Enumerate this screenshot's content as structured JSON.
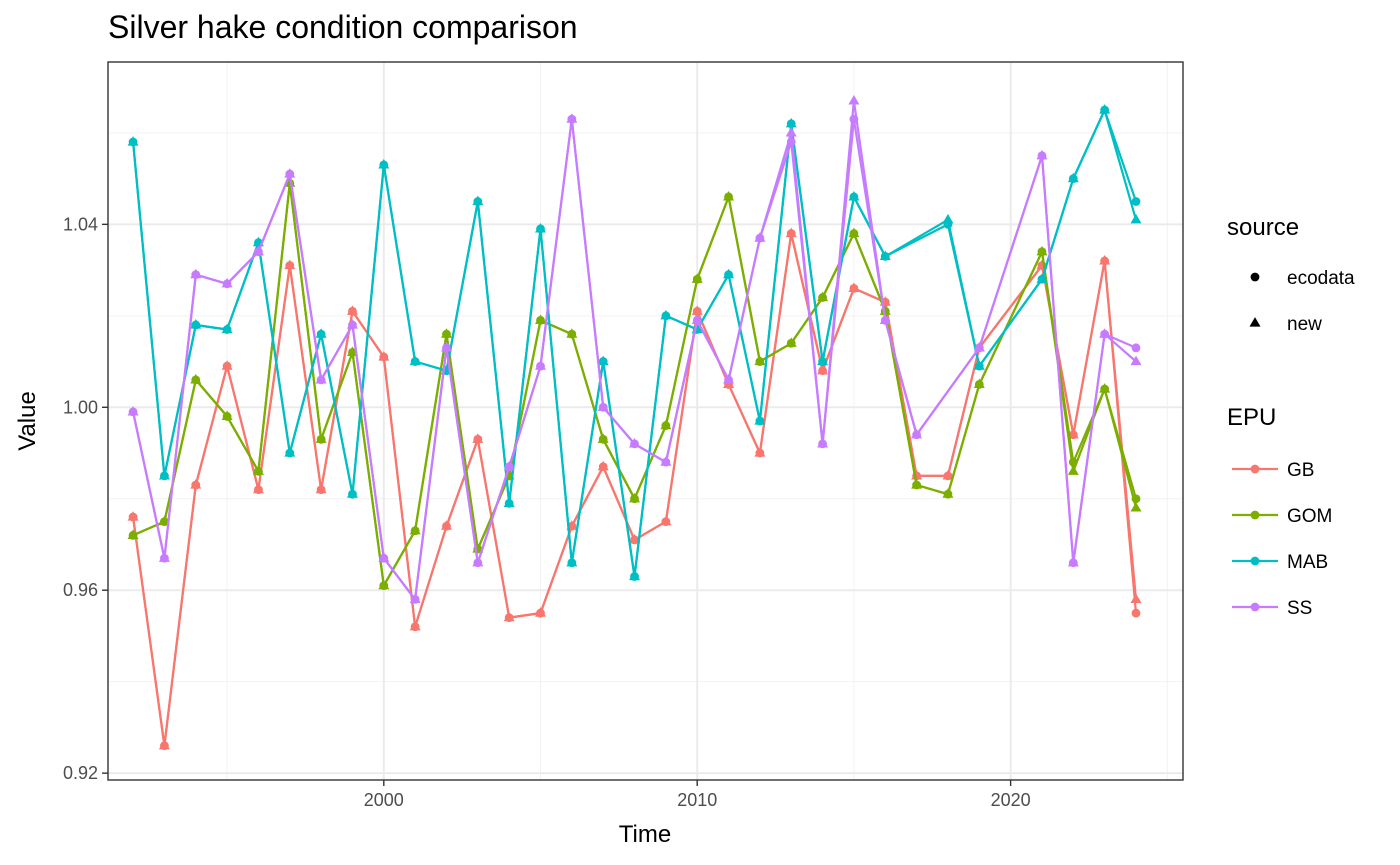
{
  "chart_data": {
    "type": "line",
    "title": "Silver hake condition comparison",
    "xlabel": "Time",
    "ylabel": "Value",
    "xlim": [
      1991.2,
      2025.5
    ],
    "ylim": [
      0.9185,
      1.0755
    ],
    "x_ticks": [
      2000,
      2010,
      2020
    ],
    "y_ticks": [
      0.92,
      0.96,
      1.0,
      1.04
    ],
    "y_tick_labels": [
      "0.92",
      "0.96",
      "1.00",
      "1.04"
    ],
    "grid": true,
    "legend_placement": "right",
    "legends": {
      "source": {
        "title": "source",
        "entries": [
          {
            "label": "ecodata",
            "shape": "circle"
          },
          {
            "label": "new",
            "shape": "triangle"
          }
        ]
      },
      "epu": {
        "title": "EPU",
        "entries": [
          "GB",
          "GOM",
          "MAB",
          "SS"
        ]
      }
    },
    "series": [
      {
        "name": "GB",
        "color": "#F8766D",
        "x": [
          1992,
          1993,
          1994,
          1995,
          1996,
          1997,
          1998,
          1999,
          2000,
          2001,
          2002,
          2003,
          2004,
          2005,
          2006,
          2007,
          2008,
          2009,
          2010,
          2011,
          2012,
          2013,
          2014,
          2015,
          2016,
          2017,
          2018,
          2019,
          2021,
          2022,
          2023,
          2024
        ],
        "ecodata": [
          0.976,
          0.926,
          0.983,
          1.009,
          0.982,
          1.031,
          0.982,
          1.021,
          1.011,
          0.952,
          0.974,
          0.993,
          0.954,
          0.955,
          0.974,
          0.987,
          0.971,
          0.975,
          1.021,
          1.005,
          0.99,
          1.038,
          1.008,
          1.026,
          1.023,
          0.985,
          0.985,
          1.013,
          1.031,
          0.994,
          1.032,
          0.955
        ],
        "new": [
          0.976,
          0.926,
          0.983,
          1.009,
          0.982,
          1.031,
          0.982,
          1.021,
          1.011,
          0.952,
          0.974,
          0.993,
          0.954,
          0.955,
          0.974,
          0.987,
          0.971,
          0.975,
          1.021,
          1.005,
          0.99,
          1.038,
          1.008,
          1.026,
          1.023,
          0.985,
          0.985,
          1.013,
          1.031,
          0.994,
          1.032,
          0.958
        ]
      },
      {
        "name": "GOM",
        "color": "#7CAE00",
        "x": [
          1992,
          1993,
          1994,
          1995,
          1996,
          1997,
          1998,
          1999,
          2000,
          2001,
          2002,
          2003,
          2004,
          2005,
          2006,
          2007,
          2008,
          2009,
          2010,
          2011,
          2012,
          2013,
          2014,
          2015,
          2016,
          2017,
          2018,
          2019,
          2021,
          2022,
          2023,
          2024
        ],
        "ecodata": [
          0.972,
          0.975,
          1.006,
          0.998,
          0.986,
          1.049,
          0.993,
          1.012,
          0.961,
          0.973,
          1.016,
          0.969,
          0.985,
          1.019,
          1.016,
          0.993,
          0.98,
          0.996,
          1.028,
          1.046,
          1.01,
          1.014,
          1.024,
          1.038,
          1.021,
          0.983,
          0.981,
          1.005,
          1.034,
          0.988,
          1.004,
          0.98
        ],
        "new": [
          0.972,
          0.975,
          1.006,
          0.998,
          0.986,
          1.049,
          0.993,
          1.012,
          0.961,
          0.973,
          1.016,
          0.969,
          0.985,
          1.019,
          1.016,
          0.993,
          0.98,
          0.996,
          1.028,
          1.046,
          1.01,
          1.014,
          1.024,
          1.038,
          1.021,
          0.983,
          0.981,
          1.005,
          1.034,
          0.986,
          1.004,
          0.978
        ]
      },
      {
        "name": "MAB",
        "color": "#00BFC4",
        "x": [
          1992,
          1993,
          1994,
          1995,
          1996,
          1997,
          1998,
          1999,
          2000,
          2001,
          2002,
          2003,
          2004,
          2005,
          2006,
          2007,
          2008,
          2009,
          2010,
          2011,
          2012,
          2013,
          2014,
          2015,
          2016,
          2018,
          2019,
          2021,
          2022,
          2023,
          2024
        ],
        "ecodata": [
          1.058,
          0.985,
          1.018,
          1.017,
          1.036,
          0.99,
          1.016,
          0.981,
          1.053,
          1.01,
          1.008,
          1.045,
          0.979,
          1.039,
          0.966,
          1.01,
          0.963,
          1.02,
          1.017,
          1.029,
          0.997,
          1.062,
          1.01,
          1.046,
          1.033,
          1.04,
          1.009,
          1.028,
          1.05,
          1.065,
          1.045
        ],
        "new": [
          1.058,
          0.985,
          1.018,
          1.017,
          1.036,
          0.99,
          1.016,
          0.981,
          1.053,
          1.01,
          1.008,
          1.045,
          0.979,
          1.039,
          0.966,
          1.01,
          0.963,
          1.02,
          1.017,
          1.029,
          0.997,
          1.062,
          1.01,
          1.046,
          1.033,
          1.041,
          1.009,
          1.028,
          1.05,
          1.065,
          1.041
        ]
      },
      {
        "name": "SS",
        "color": "#C77CFF",
        "x": [
          1992,
          1993,
          1994,
          1995,
          1996,
          1997,
          1998,
          1999,
          2000,
          2001,
          2002,
          2003,
          2004,
          2005,
          2006,
          2007,
          2008,
          2009,
          2010,
          2011,
          2012,
          2013,
          2014,
          2015,
          2016,
          2017,
          2019,
          2021,
          2022,
          2023,
          2024
        ],
        "ecodata": [
          0.999,
          0.967,
          1.029,
          1.027,
          1.034,
          1.051,
          1.006,
          1.018,
          0.967,
          0.958,
          1.013,
          0.966,
          0.987,
          1.009,
          1.063,
          1.0,
          0.992,
          0.988,
          1.019,
          1.006,
          1.037,
          1.058,
          0.992,
          1.063,
          1.019,
          0.994,
          1.013,
          1.055,
          0.966,
          1.016,
          1.013
        ],
        "new": [
          0.999,
          0.967,
          1.029,
          1.027,
          1.034,
          1.051,
          1.006,
          1.018,
          0.967,
          0.958,
          1.013,
          0.966,
          0.987,
          1.009,
          1.063,
          1.0,
          0.992,
          0.988,
          1.019,
          1.006,
          1.037,
          1.06,
          0.992,
          1.067,
          1.019,
          0.994,
          1.013,
          1.055,
          0.966,
          1.016,
          1.01
        ]
      }
    ]
  }
}
